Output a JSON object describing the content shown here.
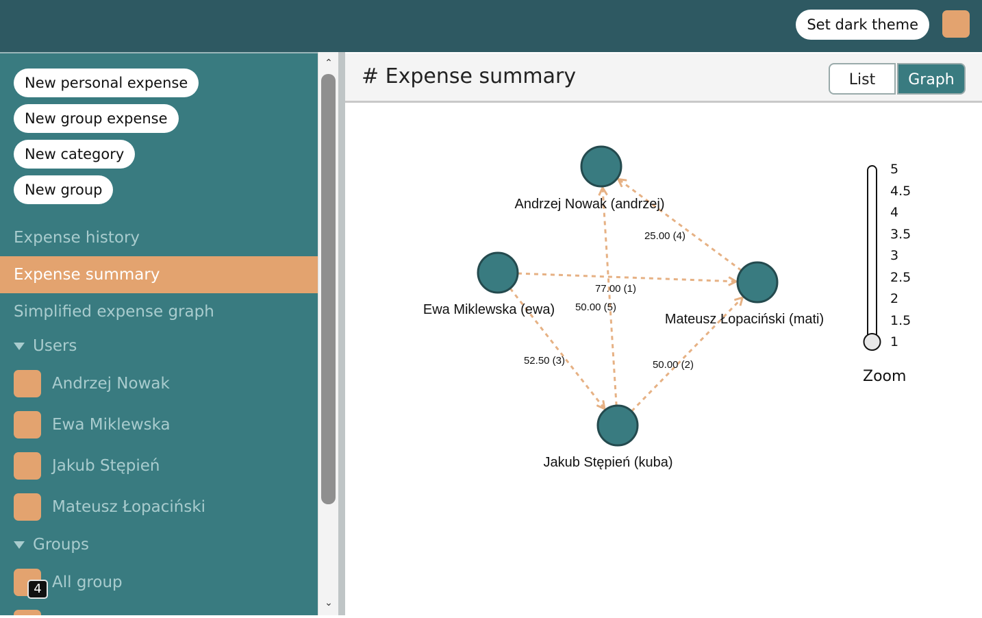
{
  "topbar": {
    "theme_button": "Set dark theme"
  },
  "sidebar": {
    "actions": [
      "New personal expense",
      "New group expense",
      "New category",
      "New group"
    ],
    "nav": [
      "Expense history",
      "Expense summary",
      "Simplified expense graph"
    ],
    "users_heading": "Users",
    "users": [
      "Andrzej Nowak",
      "Ewa Miklewska",
      "Jakub Stępień",
      "Mateusz Łopaciński"
    ],
    "groups_heading": "Groups",
    "groups": [
      {
        "name": "All group",
        "badge": "4"
      }
    ]
  },
  "main": {
    "title": "# Expense summary",
    "view_toggle": {
      "list": "List",
      "graph": "Graph",
      "selected": "Graph"
    }
  },
  "graph": {
    "nodes": [
      {
        "id": "andrzej",
        "label": "Andrzej Nowak (andrzej)"
      },
      {
        "id": "ewa",
        "label": "Ewa Miklewska (ewa)"
      },
      {
        "id": "mati",
        "label": "Mateusz Łopaciński (mati)"
      },
      {
        "id": "kuba",
        "label": "Jakub Stępień (kuba)"
      }
    ],
    "edges": [
      {
        "from": "mati",
        "to": "andrzej",
        "label": "25.00 (4)"
      },
      {
        "from": "ewa",
        "to": "mati",
        "label": "77.00 (1)"
      },
      {
        "from": "kuba",
        "to": "andrzej",
        "label": "50.00 (5)"
      },
      {
        "from": "ewa",
        "to": "kuba",
        "label": "52.50 (3)"
      },
      {
        "from": "kuba",
        "to": "mati",
        "label": "50.00 (2)"
      }
    ],
    "colors": {
      "node_fill": "#397b80",
      "node_stroke": "#244a4e",
      "edge": "#e6b184"
    }
  },
  "zoom": {
    "label": "Zoom",
    "ticks": [
      "5",
      "4.5",
      "4",
      "3.5",
      "3",
      "2.5",
      "2",
      "1.5",
      "1"
    ],
    "value": 1
  },
  "colors": {
    "topbar": "#2e5962",
    "sidebar": "#397b80",
    "accent": "#e3a36f"
  }
}
